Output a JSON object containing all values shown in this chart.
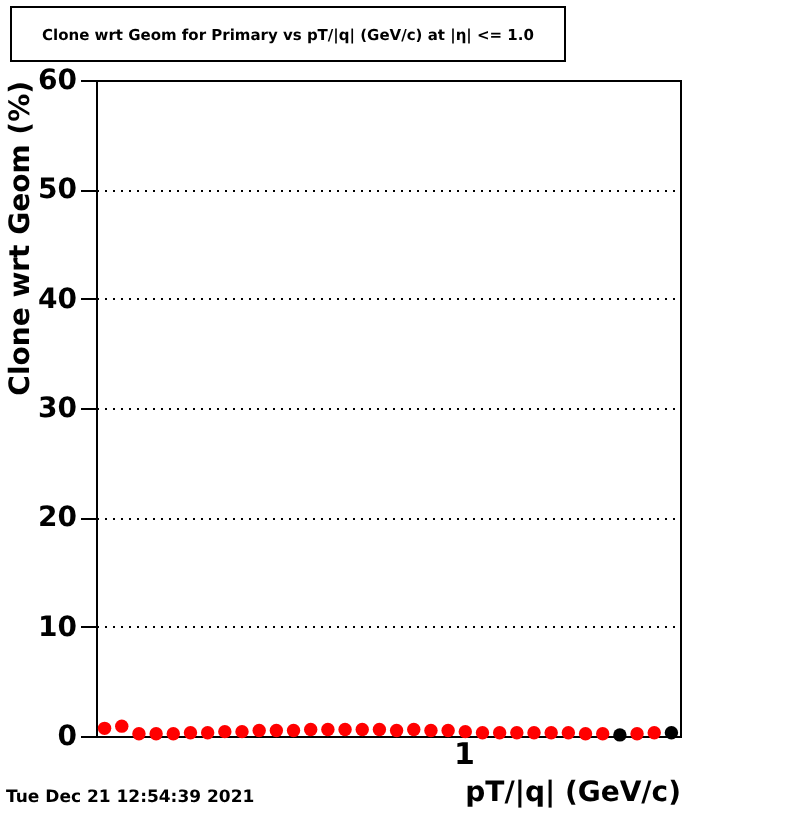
{
  "chart_data": {
    "type": "scatter",
    "title": "Clone wrt Geom for Primary vs pT/|q| (GeV/c) at |η| <= 1.0",
    "xlabel": "pT/|q| (GeV/c)",
    "ylabel": "Clone wrt Geom (%)",
    "grid": "y",
    "marker": "circle",
    "ylim": [
      0,
      60
    ],
    "yticks": [
      0,
      10,
      20,
      30,
      40,
      50,
      60
    ],
    "annotations": [
      "1",
      "Tue Dec 21 12:54:39 2021"
    ],
    "categories": [
      null,
      null,
      null,
      null,
      null,
      null,
      null,
      null,
      null,
      null,
      null,
      null,
      null,
      null,
      null,
      null,
      null,
      null,
      null,
      null,
      null,
      null,
      null,
      null,
      null,
      null,
      null,
      null,
      null,
      null,
      null,
      null,
      null,
      null
    ],
    "series": [
      {
        "color": "#000000",
        "values": [
          null,
          null,
          null,
          null,
          null,
          null,
          null,
          null,
          null,
          null,
          null,
          null,
          null,
          null,
          null,
          null,
          null,
          null,
          null,
          null,
          null,
          null,
          null,
          null,
          null,
          null,
          null,
          null,
          null,
          null,
          0.1,
          null,
          null,
          0.3
        ]
      },
      {
        "color": "#ff0000",
        "values": [
          0.7,
          0.9,
          0.2,
          0.2,
          0.2,
          0.3,
          0.3,
          0.4,
          0.4,
          0.5,
          0.5,
          0.5,
          0.6,
          0.6,
          0.6,
          0.6,
          0.6,
          0.5,
          0.6,
          0.5,
          0.5,
          0.4,
          0.3,
          0.3,
          0.3,
          0.3,
          0.3,
          0.3,
          0.2,
          0.2,
          null,
          0.2,
          0.3,
          null
        ]
      }
    ]
  }
}
